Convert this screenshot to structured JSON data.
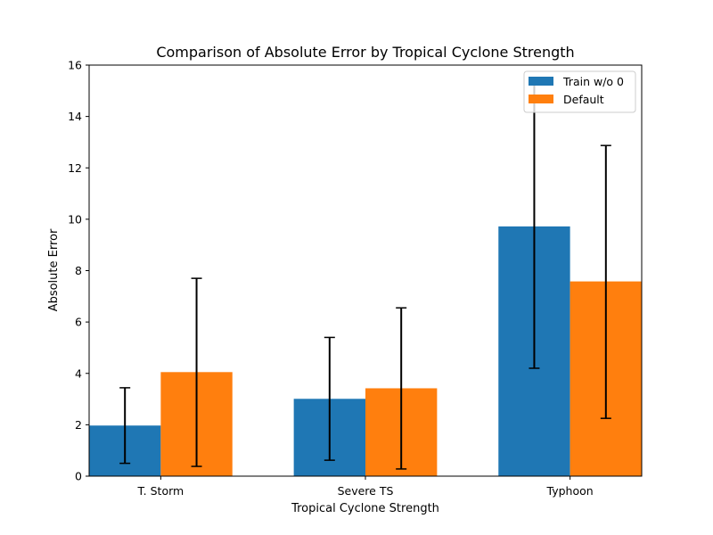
{
  "chart_data": {
    "type": "bar",
    "title": "Comparison of Absolute Error by Tropical Cyclone Strength",
    "xlabel": "Tropical Cyclone Strength",
    "ylabel": "Absolute Error",
    "categories": [
      "T. Storm",
      "Severe TS",
      "Typhoon"
    ],
    "yticks": [
      "0",
      "2",
      "4",
      "6",
      "8",
      "10",
      "12",
      "14",
      "16"
    ],
    "ylim": [
      0,
      16
    ],
    "grid": false,
    "legend_position": "top-right",
    "series": [
      {
        "name": "Train w/o 0",
        "color": "#1f77b4",
        "values": [
          1.97,
          3.01,
          9.72
        ],
        "error_low": [
          0.5,
          0.62,
          4.2
        ],
        "error_high": [
          3.44,
          5.4,
          15.23
        ]
      },
      {
        "name": "Default",
        "color": "#ff7f0e",
        "values": [
          4.05,
          3.42,
          7.58
        ],
        "error_low": [
          0.38,
          0.28,
          2.25
        ],
        "error_high": [
          7.7,
          6.55,
          12.87
        ]
      }
    ]
  }
}
